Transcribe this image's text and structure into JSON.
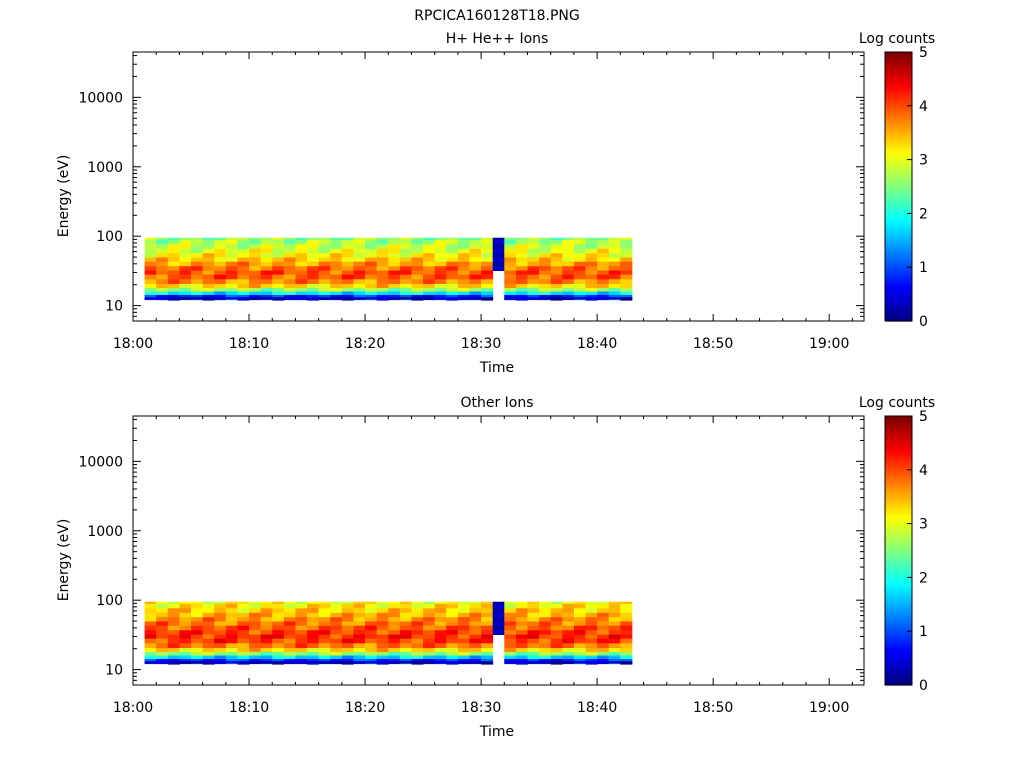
{
  "figure_title": "RPCICA160128T18.PNG",
  "chart_data": [
    {
      "type": "heatmap",
      "title": "H+ He++ Ions",
      "xlabel": "Time",
      "ylabel": "Energy (eV)",
      "colorbar_label": "Log counts",
      "colorbar_ticks": [
        "0",
        "1",
        "2",
        "3",
        "4",
        "5"
      ],
      "colorbar_range": [
        0,
        5
      ],
      "colormap": "jet",
      "x_ticks": [
        "18:00",
        "18:10",
        "18:20",
        "18:30",
        "18:40",
        "18:50",
        "19:00"
      ],
      "y_ticks": [
        "10",
        "100",
        "1000",
        "10000"
      ],
      "y_scale": "log",
      "xlim": [
        "18:00",
        "19:03"
      ],
      "ylim": [
        6,
        45000
      ],
      "data_time_range": [
        "18:01",
        "18:43"
      ],
      "gap_time": "18:31",
      "profile": [
        {
          "e": 95,
          "v": 2.6
        },
        {
          "e": 82,
          "v": 2.7
        },
        {
          "e": 71,
          "v": 2.85
        },
        {
          "e": 61,
          "v": 3.0
        },
        {
          "e": 53,
          "v": 3.15
        },
        {
          "e": 46,
          "v": 3.35
        },
        {
          "e": 40,
          "v": 3.6
        },
        {
          "e": 34,
          "v": 3.85
        },
        {
          "e": 30,
          "v": 4.0
        },
        {
          "e": 26,
          "v": 3.95
        },
        {
          "e": 22,
          "v": 3.7
        },
        {
          "e": 19,
          "v": 3.3
        },
        {
          "e": 17,
          "v": 2.7
        },
        {
          "e": 15,
          "v": 1.8
        },
        {
          "e": 13.5,
          "v": 0.8
        }
      ]
    },
    {
      "type": "heatmap",
      "title": "Other Ions",
      "xlabel": "Time",
      "ylabel": "Energy (eV)",
      "colorbar_label": "Log counts",
      "colorbar_ticks": [
        "0",
        "1",
        "2",
        "3",
        "4",
        "5"
      ],
      "colorbar_range": [
        0,
        5
      ],
      "colormap": "jet",
      "x_ticks": [
        "18:00",
        "18:10",
        "18:20",
        "18:30",
        "18:40",
        "18:50",
        "19:00"
      ],
      "y_ticks": [
        "10",
        "100",
        "1000",
        "10000"
      ],
      "y_scale": "log",
      "xlim": [
        "18:00",
        "19:03"
      ],
      "ylim": [
        6,
        45000
      ],
      "data_time_range": [
        "18:01",
        "18:43"
      ],
      "gap_time": "18:31",
      "profile": [
        {
          "e": 95,
          "v": 3.1
        },
        {
          "e": 82,
          "v": 3.2
        },
        {
          "e": 71,
          "v": 3.35
        },
        {
          "e": 61,
          "v": 3.5
        },
        {
          "e": 53,
          "v": 3.65
        },
        {
          "e": 46,
          "v": 3.8
        },
        {
          "e": 40,
          "v": 3.95
        },
        {
          "e": 34,
          "v": 4.1
        },
        {
          "e": 30,
          "v": 4.2
        },
        {
          "e": 26,
          "v": 4.1
        },
        {
          "e": 22,
          "v": 3.8
        },
        {
          "e": 19,
          "v": 3.3
        },
        {
          "e": 17,
          "v": 2.6
        },
        {
          "e": 15,
          "v": 1.7
        },
        {
          "e": 13.5,
          "v": 0.8
        }
      ]
    }
  ]
}
